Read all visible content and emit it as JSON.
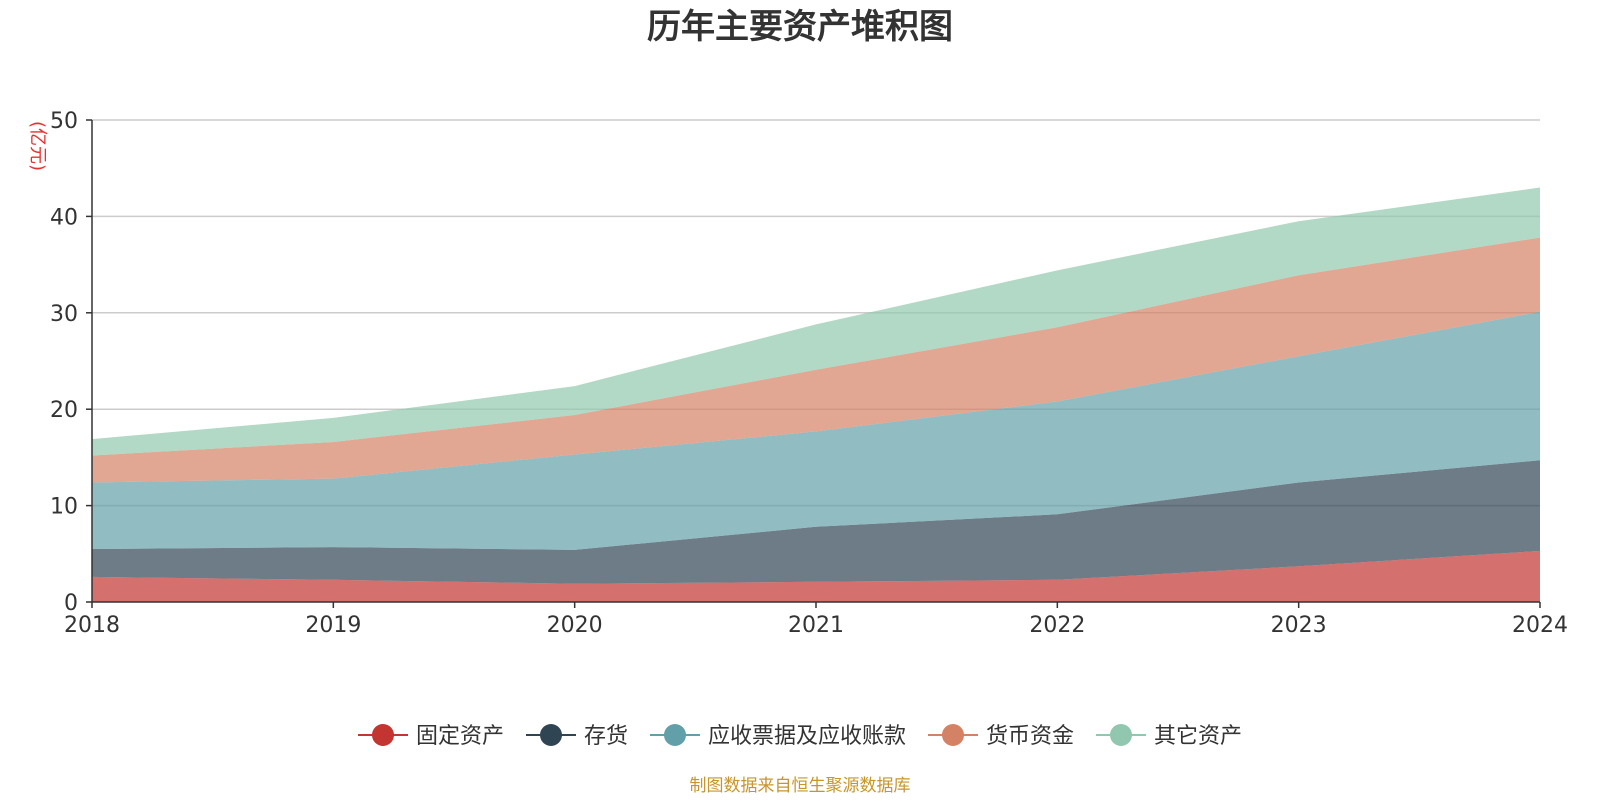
{
  "chart_data": {
    "type": "area",
    "stacked": true,
    "title": "历年主要资产堆积图",
    "unit_label": "(亿元)",
    "categories": [
      "2018",
      "2019",
      "2020",
      "2021",
      "2022",
      "2023",
      "2024"
    ],
    "ylim": [
      0,
      50
    ],
    "yticks": [
      0,
      10,
      20,
      30,
      40,
      50
    ],
    "grid": true,
    "legend_position": "bottom-center",
    "series": [
      {
        "name": "固定资产",
        "color": "#c23531",
        "values": [
          2.6,
          2.3,
          1.9,
          2.1,
          2.3,
          3.7,
          5.3
        ]
      },
      {
        "name": "存货",
        "color": "#2f4554",
        "values": [
          2.9,
          3.4,
          3.5,
          5.7,
          6.8,
          8.7,
          9.4
        ]
      },
      {
        "name": "应收票据及应收账款",
        "color": "#61a0a8",
        "values": [
          6.9,
          7.1,
          9.9,
          9.9,
          11.7,
          13.1,
          15.4
        ]
      },
      {
        "name": "货币资金",
        "color": "#d48265",
        "values": [
          2.8,
          3.8,
          4.1,
          6.4,
          7.7,
          8.4,
          7.7
        ]
      },
      {
        "name": "其它资产",
        "color": "#91c7ae",
        "values": [
          1.7,
          2.5,
          3.0,
          4.7,
          5.9,
          5.6,
          5.2
        ]
      }
    ]
  },
  "colors": {
    "unit": "#e8312f",
    "footer": "#c8952a",
    "grid": "#cccccc",
    "axis": "#333333"
  },
  "footer": "制图数据来自恒生聚源数据库"
}
